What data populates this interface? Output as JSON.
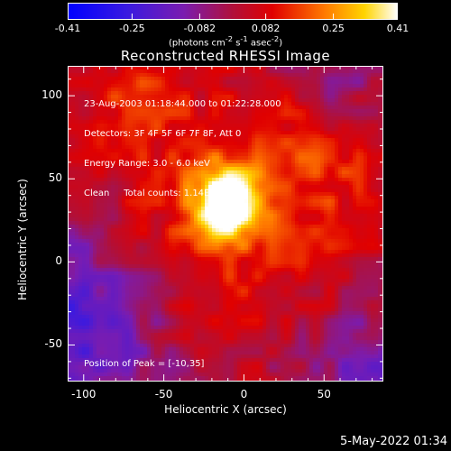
{
  "colorbar": {
    "ticks": [
      "-0.41",
      "-0.25",
      "-0.082",
      "0.082",
      "0.25",
      "0.41"
    ],
    "range": [
      -0.41,
      0.41
    ],
    "unit_parts": [
      "(photons cm",
      "-2",
      " s",
      "-1",
      " asec",
      "-2",
      ")"
    ]
  },
  "chart_data": {
    "type": "heatmap",
    "title": "Reconstructed RHESSI Image",
    "xlabel": "Heliocentric X (arcsec)",
    "ylabel": "Heliocentric Y (arcsec)",
    "xlim": [
      -110,
      87
    ],
    "ylim": [
      -72,
      118
    ],
    "xticks": [
      "-100",
      "-50",
      "0",
      "50"
    ],
    "yticks": [
      "100",
      "50",
      "0",
      "-50"
    ],
    "annotations": [
      "23-Aug-2003 01:18:44.000 to 01:22:28.000",
      "Detectors: 3F 4F 5F 6F 7F 8F, Att 0",
      "Energy Range: 3.0 - 6.0 keV",
      "Clean     Total counts: 1.14E+04"
    ],
    "peak_label": "Position of Peak = [-10,35]",
    "peak": [
      -10,
      35
    ],
    "peak_value": 0.41
  },
  "footer": {
    "timestamp": "5-May-2022 01:34"
  }
}
